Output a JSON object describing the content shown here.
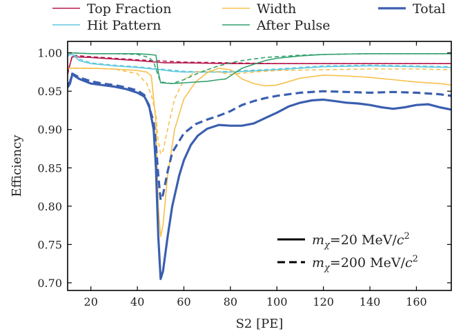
{
  "chart_data": {
    "type": "line",
    "xlabel": "S2 [PE]",
    "ylabel": "Efficiency",
    "xlim": [
      10,
      175
    ],
    "ylim": [
      0.69,
      1.015
    ],
    "xticks": [
      20,
      40,
      60,
      80,
      100,
      120,
      140,
      160
    ],
    "yticks": [
      0.7,
      0.75,
      0.8,
      0.85,
      0.9,
      0.95,
      1.0
    ],
    "ytick_labels": [
      "0.70",
      "0.75",
      "0.80",
      "0.85",
      "0.90",
      "0.95",
      "1.00"
    ],
    "legend_placement": "above plot",
    "styles": [
      {
        "label_main": "m",
        "label_sub": "χ",
        "label_rest": "=20 MeV/",
        "label_c": "c",
        "label_sup": "2",
        "dash": "solid"
      },
      {
        "label_main": "m",
        "label_sub": "χ",
        "label_rest": "=200 MeV/",
        "label_c": "c",
        "label_sup": "2",
        "dash": "dashed"
      }
    ],
    "series": [
      {
        "name": "Top Fraction",
        "color": "#b5174b",
        "width": 1.6,
        "solid": {
          "x": [
            10,
            12,
            20,
            40,
            48,
            52,
            60,
            80,
            100,
            130,
            175
          ],
          "y": [
            0.975,
            0.995,
            0.994,
            0.99,
            0.988,
            0.987,
            0.987,
            0.986,
            0.986,
            0.986,
            0.986
          ]
        },
        "dashed": {
          "x": [
            10,
            12,
            20,
            40,
            60,
            80,
            100,
            130,
            175
          ],
          "y": [
            0.972,
            0.997,
            0.995,
            0.991,
            0.988,
            0.987,
            0.986,
            0.986,
            0.986
          ]
        }
      },
      {
        "name": "Hit Pattern",
        "color": "#62c8dd",
        "width": 1.6,
        "solid": {
          "x": [
            10,
            12,
            15,
            20,
            30,
            40,
            50,
            55,
            60,
            70,
            80,
            100,
            120,
            140,
            160,
            175
          ],
          "y": [
            0.998,
            0.998,
            0.99,
            0.986,
            0.983,
            0.981,
            0.978,
            0.976,
            0.975,
            0.975,
            0.975,
            0.978,
            0.982,
            0.983,
            0.982,
            0.981
          ]
        },
        "dashed": {
          "x": [
            10,
            12,
            15,
            20,
            30,
            40,
            50,
            60,
            70,
            80,
            100,
            120,
            140,
            160,
            175
          ],
          "y": [
            0.996,
            0.999,
            0.992,
            0.987,
            0.984,
            0.982,
            0.979,
            0.976,
            0.975,
            0.976,
            0.979,
            0.983,
            0.984,
            0.983,
            0.982
          ]
        }
      },
      {
        "name": "Width",
        "color": "#f7c04a",
        "width": 1.6,
        "solid": {
          "x": [
            10,
            12,
            20,
            30,
            40,
            44,
            46,
            48,
            49,
            50,
            51,
            53,
            56,
            60,
            65,
            70,
            75,
            80,
            85,
            90,
            95,
            100,
            110,
            120,
            130,
            140,
            150,
            160,
            170,
            175
          ],
          "y": [
            0.98,
            0.98,
            0.98,
            0.979,
            0.977,
            0.975,
            0.97,
            0.91,
            0.8,
            0.76,
            0.775,
            0.84,
            0.9,
            0.94,
            0.962,
            0.974,
            0.98,
            0.978,
            0.966,
            0.96,
            0.957,
            0.958,
            0.967,
            0.971,
            0.97,
            0.968,
            0.965,
            0.962,
            0.96,
            0.958
          ]
        },
        "dashed": {
          "x": [
            10,
            12,
            20,
            30,
            40,
            44,
            46,
            48,
            49,
            50,
            51,
            53,
            56,
            60,
            65,
            70,
            75,
            80,
            90,
            100,
            120,
            140,
            160,
            175
          ],
          "y": [
            0.98,
            0.98,
            0.98,
            0.979,
            0.973,
            0.96,
            0.945,
            0.92,
            0.885,
            0.868,
            0.872,
            0.9,
            0.94,
            0.965,
            0.975,
            0.977,
            0.975,
            0.972,
            0.975,
            0.977,
            0.978,
            0.979,
            0.979,
            0.978
          ]
        }
      },
      {
        "name": "After Pulse",
        "color": "#34a06e",
        "width": 1.6,
        "solid": {
          "x": [
            10,
            12,
            20,
            30,
            40,
            45,
            48,
            49,
            50,
            55,
            60,
            65,
            70,
            75,
            78,
            80,
            85,
            90,
            95,
            100,
            110,
            120,
            140,
            175
          ],
          "y": [
            1.0,
            1.0,
            0.999,
            0.999,
            0.999,
            0.998,
            0.997,
            0.975,
            0.961,
            0.96,
            0.961,
            0.962,
            0.963,
            0.965,
            0.966,
            0.97,
            0.98,
            0.985,
            0.99,
            0.993,
            0.996,
            0.998,
            0.999,
            0.999
          ]
        },
        "dashed": {
          "x": [
            10,
            12,
            20,
            30,
            40,
            45,
            47,
            49,
            50,
            55,
            60,
            65,
            70,
            75,
            80,
            85,
            90,
            95,
            100,
            110,
            120,
            140,
            175
          ],
          "y": [
            1.0,
            1.0,
            0.999,
            0.999,
            0.998,
            0.994,
            0.988,
            0.97,
            0.962,
            0.96,
            0.965,
            0.972,
            0.978,
            0.983,
            0.987,
            0.99,
            0.992,
            0.994,
            0.995,
            0.997,
            0.998,
            0.999,
            0.999
          ]
        }
      },
      {
        "name": "Total",
        "color": "#3a5fb0",
        "width": 3.2,
        "solid": {
          "x": [
            10,
            11,
            12,
            15,
            20,
            25,
            30,
            35,
            40,
            43,
            45,
            47,
            48,
            49,
            50,
            51,
            53,
            55,
            58,
            60,
            63,
            66,
            70,
            75,
            80,
            85,
            90,
            95,
            100,
            105,
            110,
            115,
            120,
            125,
            130,
            135,
            140,
            145,
            150,
            155,
            160,
            165,
            170,
            175
          ],
          "y": [
            0.955,
            0.96,
            0.972,
            0.966,
            0.96,
            0.958,
            0.956,
            0.953,
            0.948,
            0.943,
            0.932,
            0.9,
            0.85,
            0.76,
            0.705,
            0.715,
            0.76,
            0.8,
            0.84,
            0.86,
            0.88,
            0.892,
            0.901,
            0.906,
            0.905,
            0.905,
            0.908,
            0.915,
            0.922,
            0.93,
            0.935,
            0.938,
            0.939,
            0.937,
            0.935,
            0.934,
            0.932,
            0.929,
            0.927,
            0.929,
            0.932,
            0.933,
            0.929,
            0.926
          ]
        },
        "dashed": {
          "x": [
            10,
            11,
            12,
            15,
            20,
            25,
            30,
            35,
            40,
            43,
            45,
            47,
            48,
            49,
            50,
            51,
            53,
            55,
            58,
            60,
            65,
            70,
            75,
            80,
            85,
            90,
            95,
            100,
            110,
            120,
            130,
            140,
            150,
            160,
            170,
            175
          ],
          "y": [
            0.958,
            0.962,
            0.973,
            0.968,
            0.963,
            0.96,
            0.958,
            0.955,
            0.951,
            0.945,
            0.93,
            0.91,
            0.88,
            0.84,
            0.808,
            0.815,
            0.845,
            0.87,
            0.885,
            0.895,
            0.907,
            0.913,
            0.918,
            0.924,
            0.932,
            0.937,
            0.941,
            0.944,
            0.948,
            0.95,
            0.949,
            0.948,
            0.949,
            0.948,
            0.946,
            0.944
          ]
        }
      }
    ]
  }
}
